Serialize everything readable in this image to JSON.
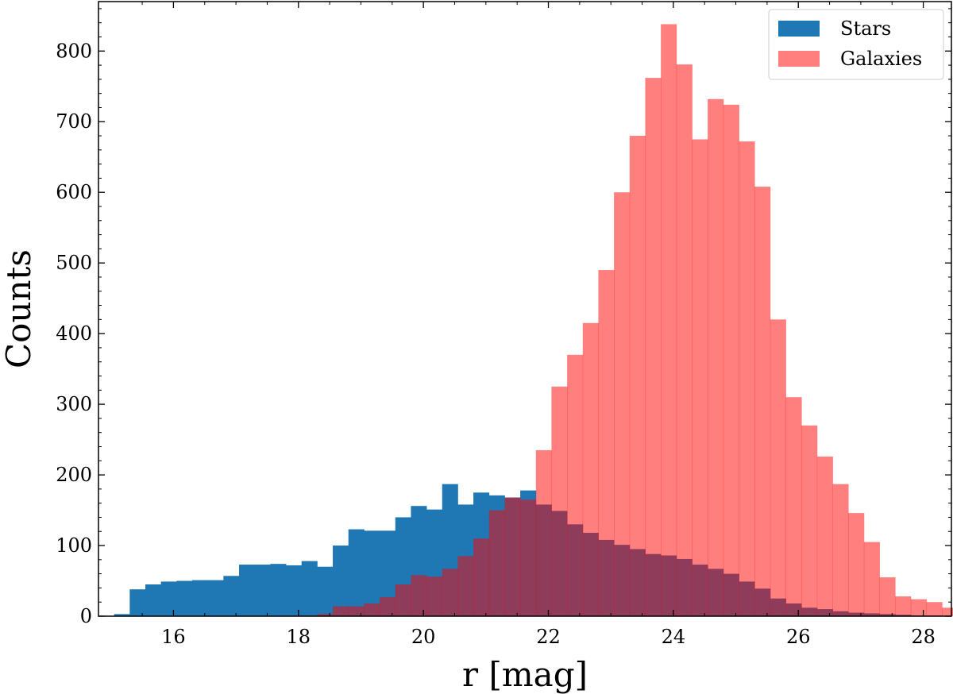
{
  "chart_data": {
    "type": "bar",
    "title": "",
    "xlabel": "r [mag]",
    "ylabel": "Counts",
    "xlim": [
      14.8,
      28.45
    ],
    "ylim": [
      0,
      870
    ],
    "xticks": [
      16,
      18,
      20,
      22,
      24,
      26,
      28
    ],
    "yticks": [
      0,
      100,
      200,
      300,
      400,
      500,
      600,
      700,
      800
    ],
    "bin_width": 0.25,
    "grid": false,
    "legend_position": "top-right",
    "series": [
      {
        "name": "Stars",
        "color": "#1f77b4",
        "opacity": 1.0,
        "bins_start": 15.05,
        "values": [
          3,
          38,
          45,
          49,
          50,
          51,
          51,
          57,
          73,
          73,
          74,
          72,
          78,
          70,
          100,
          123,
          121,
          121,
          140,
          156,
          151,
          187,
          158,
          175,
          171,
          168,
          178,
          158,
          149,
          130,
          118,
          108,
          101,
          95,
          88,
          86,
          81,
          73,
          67,
          60,
          49,
          39,
          25,
          18,
          12,
          10,
          7,
          5,
          4,
          3,
          2,
          1,
          1,
          0
        ]
      },
      {
        "name": "Galaxies",
        "color": "#ff0000",
        "opacity": 0.5,
        "bins_start": 15.05,
        "values": [
          0,
          0,
          0,
          0,
          0,
          0,
          0,
          0,
          0,
          0,
          0,
          0,
          1,
          3,
          14,
          14,
          18,
          27,
          45,
          58,
          56,
          67,
          85,
          110,
          150,
          168,
          165,
          235,
          325,
          370,
          415,
          490,
          600,
          680,
          762,
          838,
          781,
          675,
          732,
          724,
          672,
          608,
          420,
          310,
          270,
          226,
          187,
          146,
          105,
          55,
          28,
          24,
          20,
          12,
          8
        ]
      }
    ]
  }
}
